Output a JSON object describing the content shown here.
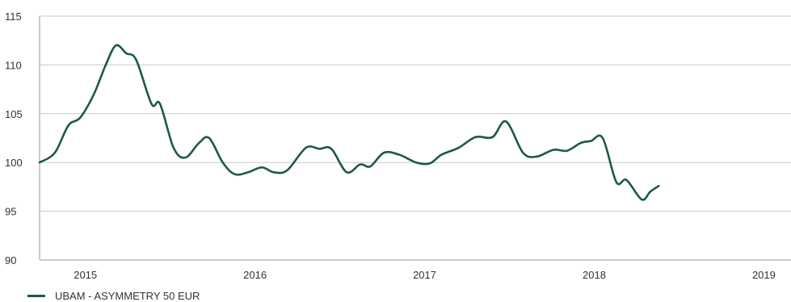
{
  "chart_data": {
    "type": "line",
    "title": "",
    "xlabel": "",
    "ylabel": "",
    "ylim": [
      90,
      115
    ],
    "yticks": [
      90,
      95,
      100,
      105,
      110,
      115
    ],
    "xtick_labels": [
      "2015",
      "2016",
      "2017",
      "2018",
      "2019"
    ],
    "xlim": [
      2014.73,
      2019.16
    ],
    "grid": "horizontal",
    "legend_position": "bottom-left",
    "line_color": "#1f5a3c",
    "grid_color": "#c8c8c8",
    "series": [
      {
        "name": "UBAM - ASYMMETRY 50 EUR",
        "points": [
          [
            2014.73,
            100.0
          ],
          [
            2014.82,
            101.0
          ],
          [
            2014.9,
            103.8
          ],
          [
            2014.97,
            104.6
          ],
          [
            2015.05,
            107.0
          ],
          [
            2015.12,
            110.0
          ],
          [
            2015.18,
            112.0
          ],
          [
            2015.24,
            111.2
          ],
          [
            2015.3,
            110.5
          ],
          [
            2015.39,
            106.0
          ],
          [
            2015.44,
            106.0
          ],
          [
            2015.52,
            101.5
          ],
          [
            2015.59,
            100.5
          ],
          [
            2015.67,
            102.0
          ],
          [
            2015.73,
            102.5
          ],
          [
            2015.81,
            100.0
          ],
          [
            2015.88,
            98.8
          ],
          [
            2015.96,
            99.0
          ],
          [
            2016.04,
            99.5
          ],
          [
            2016.11,
            99.0
          ],
          [
            2016.19,
            99.2
          ],
          [
            2016.3,
            101.5
          ],
          [
            2016.38,
            101.4
          ],
          [
            2016.45,
            101.4
          ],
          [
            2016.54,
            99.0
          ],
          [
            2016.62,
            99.8
          ],
          [
            2016.68,
            99.6
          ],
          [
            2016.76,
            101.0
          ],
          [
            2016.85,
            100.8
          ],
          [
            2016.95,
            100.0
          ],
          [
            2017.03,
            99.9
          ],
          [
            2017.1,
            100.8
          ],
          [
            2017.2,
            101.5
          ],
          [
            2017.3,
            102.6
          ],
          [
            2017.4,
            102.6
          ],
          [
            2017.48,
            104.2
          ],
          [
            2017.58,
            101.0
          ],
          [
            2017.66,
            100.6
          ],
          [
            2017.76,
            101.3
          ],
          [
            2017.84,
            101.2
          ],
          [
            2017.92,
            102.0
          ],
          [
            2017.98,
            102.2
          ],
          [
            2018.05,
            102.5
          ],
          [
            2018.13,
            98.0
          ],
          [
            2018.19,
            98.2
          ],
          [
            2018.28,
            96.2
          ],
          [
            2018.33,
            97.0
          ],
          [
            2018.38,
            97.6
          ]
        ]
      }
    ]
  }
}
